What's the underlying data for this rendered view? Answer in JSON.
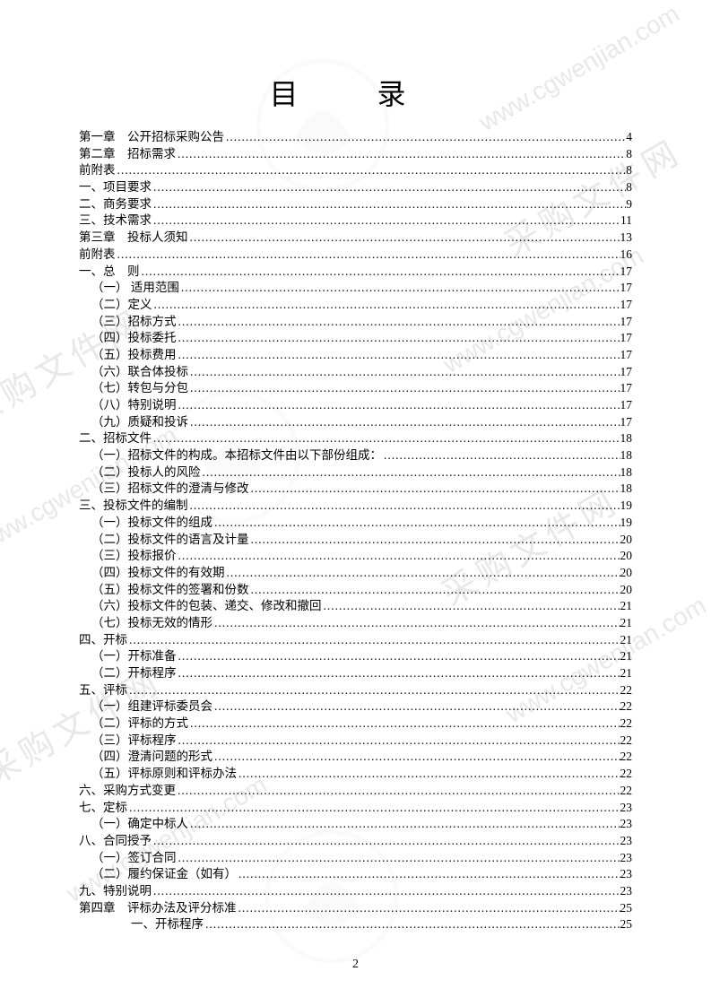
{
  "title": "目 录",
  "page_number": "2",
  "watermark_text": "www.cgwenjian.com",
  "watermark_label": "采购文件网",
  "colors": {
    "background": "#ffffff",
    "text": "#000000",
    "watermark": "#e8e8e8"
  },
  "typography": {
    "title_fontsize": 32,
    "toc_fontsize": 13.5,
    "line_height": 1.0,
    "font_family": "SimSun"
  },
  "toc": [
    {
      "label": "第一章　公开招标采购公告",
      "page": "4",
      "indent": 0
    },
    {
      "label": "第二章　招标需求",
      "page": "8",
      "indent": 0
    },
    {
      "label": "前附表",
      "page": "8",
      "indent": 0
    },
    {
      "label": "一、项目要求",
      "page": "8",
      "indent": 0
    },
    {
      "label": "二、商务要求",
      "page": "9",
      "indent": 0
    },
    {
      "label": "三、技术需求",
      "page": "11",
      "indent": 0
    },
    {
      "label": "第三章　投标人须知",
      "page": "13",
      "indent": 0
    },
    {
      "label": "前附表",
      "page": "16",
      "indent": 0
    },
    {
      "label": "一、总　则",
      "page": "17",
      "indent": 0
    },
    {
      "label": "（一） 适用范围",
      "page": "17",
      "indent": 1
    },
    {
      "label": "（二）定义",
      "page": "17",
      "indent": 1
    },
    {
      "label": "（三）招标方式",
      "page": "17",
      "indent": 1
    },
    {
      "label": "（四）投标委托",
      "page": "17",
      "indent": 1
    },
    {
      "label": "（五）投标费用",
      "page": "17",
      "indent": 1
    },
    {
      "label": "（六）联合体投标",
      "page": "17",
      "indent": 1
    },
    {
      "label": "（七）转包与分包",
      "page": "17",
      "indent": 1
    },
    {
      "label": "（八）特别说明",
      "page": "17",
      "indent": 1
    },
    {
      "label": "（九）质疑和投诉",
      "page": "17",
      "indent": 1
    },
    {
      "label": "二、招标文件",
      "page": "18",
      "indent": 0
    },
    {
      "label": "（一）招标文件的构成。本招标文件由以下部份组成：",
      "page": "18",
      "indent": 1
    },
    {
      "label": "（二）投标人的风险",
      "page": "18",
      "indent": 1
    },
    {
      "label": "（三）招标文件的澄清与修改",
      "page": "18",
      "indent": 1
    },
    {
      "label": "三、投标文件的编制",
      "page": "19",
      "indent": 0
    },
    {
      "label": "（一）投标文件的组成",
      "page": "19",
      "indent": 1
    },
    {
      "label": "（二）投标文件的语言及计量",
      "page": "20",
      "indent": 1
    },
    {
      "label": "（三）投标报价",
      "page": "20",
      "indent": 1
    },
    {
      "label": "（四）投标文件的有效期",
      "page": "20",
      "indent": 1
    },
    {
      "label": "（五）投标文件的签署和份数",
      "page": "20",
      "indent": 1
    },
    {
      "label": "（六）投标文件的包装、递交、修改和撤回",
      "page": "21",
      "indent": 1
    },
    {
      "label": "（七）投标无效的情形",
      "page": "21",
      "indent": 1
    },
    {
      "label": "四、开标",
      "page": "21",
      "indent": 0
    },
    {
      "label": "（一）开标准备",
      "page": "21",
      "indent": 1
    },
    {
      "label": "（二）开标程序",
      "page": "21",
      "indent": 1
    },
    {
      "label": "五、评标",
      "page": "22",
      "indent": 0
    },
    {
      "label": "（一）组建评标委员会",
      "page": "22",
      "indent": 1
    },
    {
      "label": "（二）评标的方式",
      "page": "22",
      "indent": 1
    },
    {
      "label": "（三）评标程序",
      "page": "22",
      "indent": 1
    },
    {
      "label": "（四）澄清问题的形式",
      "page": "22",
      "indent": 1
    },
    {
      "label": "（五）评标原则和评标办法",
      "page": "22",
      "indent": 1
    },
    {
      "label": "六、采购方式变更",
      "page": "22",
      "indent": 0
    },
    {
      "label": "七、定标",
      "page": "23",
      "indent": 0
    },
    {
      "label": "（一）确定中标人",
      "page": "23",
      "indent": 1
    },
    {
      "label": "八、合同授予",
      "page": "23",
      "indent": 0
    },
    {
      "label": "（一）签订合同",
      "page": "23",
      "indent": 1
    },
    {
      "label": "（二）履约保证金（如有）",
      "page": "23",
      "indent": 1
    },
    {
      "label": "九、特别说明",
      "page": "23",
      "indent": 0
    },
    {
      "label": "第四章　评标办法及评分标准",
      "page": "25",
      "indent": 0
    },
    {
      "label": "一、开标程序",
      "page": "25",
      "indent": 3
    }
  ]
}
